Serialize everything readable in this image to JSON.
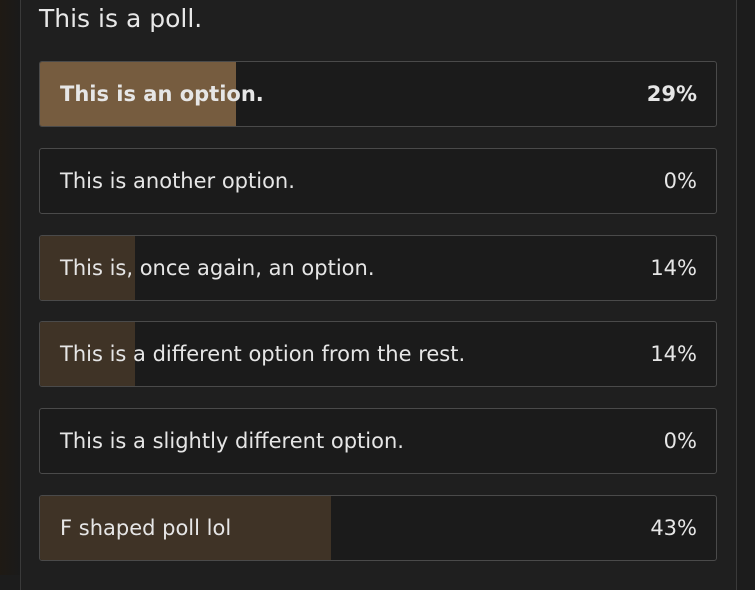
{
  "poll": {
    "question": "This is a poll.",
    "fill_color": "#3f3326",
    "voted_fill_color": "#765c3f",
    "options": [
      {
        "label": "This is an option.",
        "percent_label": "29%",
        "percent": 29,
        "voted": true
      },
      {
        "label": "This is another option.",
        "percent_label": "0%",
        "percent": 0,
        "voted": false
      },
      {
        "label": "This is, once again, an option.",
        "percent_label": "14%",
        "percent": 14,
        "voted": false
      },
      {
        "label": "This is a different option from the rest.",
        "percent_label": "14%",
        "percent": 14,
        "voted": false
      },
      {
        "label": "This is a slightly different option.",
        "percent_label": "0%",
        "percent": 0,
        "voted": false
      },
      {
        "label": "F shaped poll lol",
        "percent_label": "43%",
        "percent": 43,
        "voted": false
      }
    ]
  }
}
